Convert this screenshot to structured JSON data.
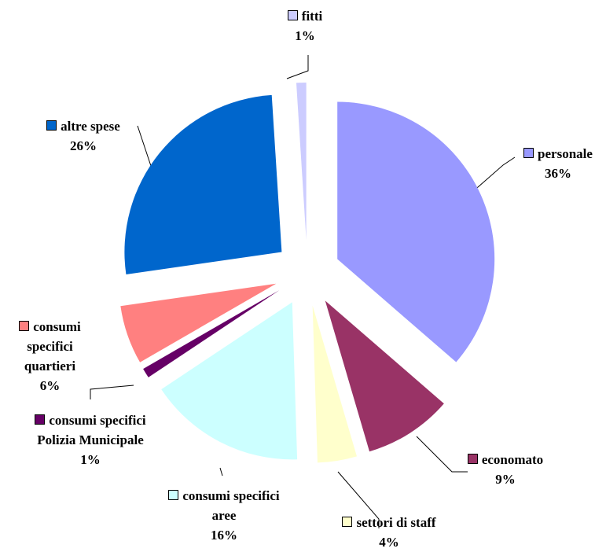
{
  "chart_data": {
    "type": "pie",
    "categories": [
      "personale",
      "economato",
      "settori di staff",
      "consumi specifici aree",
      "consumi specifici Polizia Municipale",
      "consumi specifici quartieri",
      "altre spese",
      "fitti"
    ],
    "values": [
      36,
      9,
      4,
      16,
      1,
      6,
      26,
      1
    ],
    "value_labels": [
      "36%",
      "9%",
      "4%",
      "16%",
      "1%",
      "6%",
      "26%",
      "1%"
    ],
    "colors": [
      "#9999ff",
      "#993366",
      "#ffffcc",
      "#ccffff",
      "#660066",
      "#ff8080",
      "#0066cc",
      "#ccccff"
    ]
  }
}
